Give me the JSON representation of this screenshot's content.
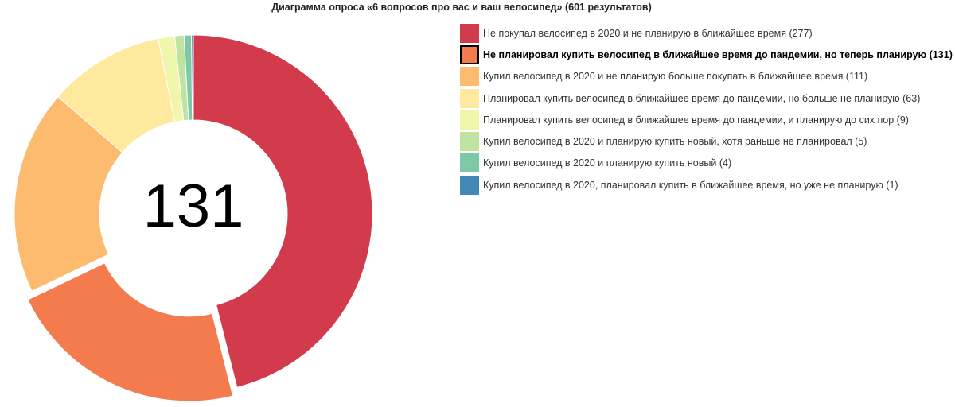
{
  "chart_data": {
    "type": "pie",
    "title": "Диаграмма опроса «6 вопросов про вас и ваш велосипед» (601 результатов)",
    "center_value": "131",
    "active_index": 1,
    "legend_position": "right",
    "slices": [
      {
        "label": "Не покупал велосипед в 2020 и не планирую в ближайшее время",
        "value": 277,
        "color": "#d13b4b"
      },
      {
        "label": "Не планировал купить велосипед в ближайшее время до пандемии, но теперь планирую",
        "value": 131,
        "color": "#f47b4e"
      },
      {
        "label": "Купил велосипед в 2020 и не планирую больше покупать в ближайшее время",
        "value": 111,
        "color": "#fdbb6f"
      },
      {
        "label": "Планировал купить велосипед в ближайшее время до пандемии, но больше не планирую",
        "value": 63,
        "color": "#fee99f"
      },
      {
        "label": "Планировал купить велосипед в ближайшее время до пандемии, и планирую до сих пор",
        "value": 9,
        "color": "#f0f7ac"
      },
      {
        "label": "Купил велосипед в 2020 и планирую купить новый, хотя раньше не планировал",
        "value": 5,
        "color": "#bfe4a1"
      },
      {
        "label": "Купил велосипед в 2020 и планирую купить новый",
        "value": 4,
        "color": "#7dc8a7"
      },
      {
        "label": "Купил велосипед в 2020, планировал купить в ближайшее время, но уже не планирую",
        "value": 1,
        "color": "#4288b5"
      }
    ]
  }
}
